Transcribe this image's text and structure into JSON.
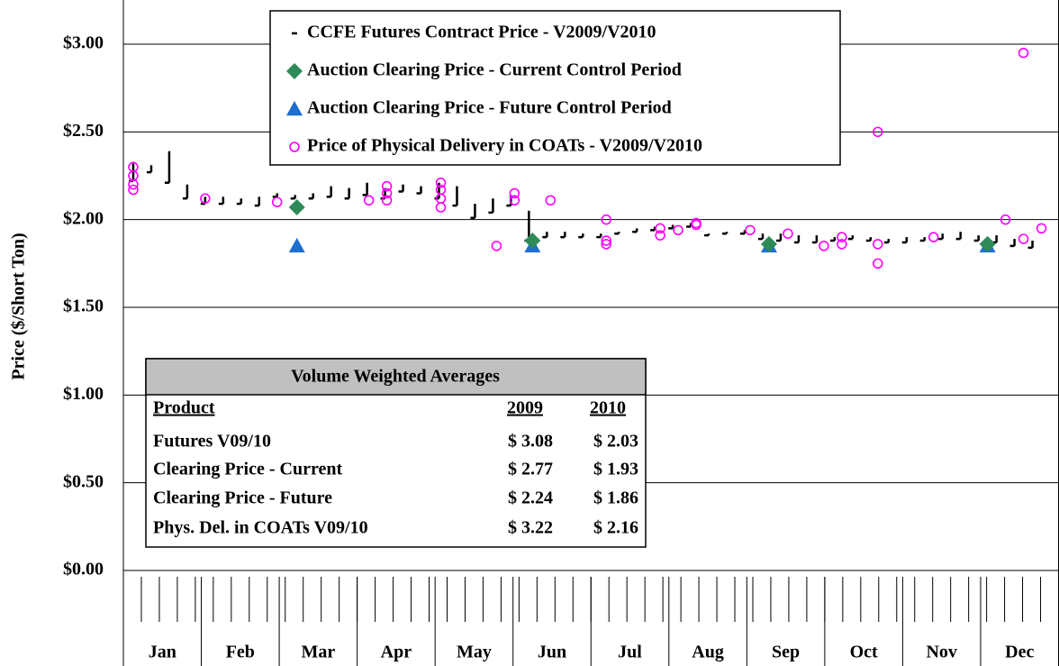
{
  "chart_data": {
    "type": "stock",
    "y_label": "Price ($/Short Ton)",
    "categories": [
      "Jan",
      "Feb",
      "Mar",
      "Apr",
      "May",
      "Jun",
      "Jul",
      "Aug",
      "Sep",
      "Oct",
      "Nov",
      "Dec"
    ],
    "xlim": [
      0,
      52
    ],
    "xticks": [
      0,
      1,
      2,
      3,
      4,
      5,
      6,
      7,
      8,
      9,
      10,
      11,
      12,
      13,
      14,
      15,
      16,
      17,
      18,
      19,
      20,
      21,
      22,
      23,
      24,
      25,
      26,
      27,
      28,
      29,
      30,
      31,
      32,
      33,
      34,
      35,
      36,
      37,
      38,
      39,
      40,
      41,
      42,
      43,
      44,
      45,
      46,
      47,
      48,
      49,
      50,
      51,
      52
    ],
    "ylim": [
      0,
      3
    ],
    "yticks": [
      {
        "value": 0,
        "label": "$0.00"
      },
      {
        "value": 0.5,
        "label": "$0.50"
      },
      {
        "value": 1,
        "label": "$1.00"
      },
      {
        "value": 1.5,
        "label": "$1.50"
      },
      {
        "value": 2,
        "label": "$2.00"
      },
      {
        "value": 2.5,
        "label": "$2.50"
      },
      {
        "value": 3,
        "label": "$3.00"
      }
    ],
    "grid": true,
    "series": [
      {
        "name": "CCFE Futures Contract Price - V2009/V2010",
        "marker": "range",
        "color": "#000000",
        "x": [
          0.55,
          1.55,
          2.55,
          3.55,
          4.55,
          5.55,
          6.55,
          7.55,
          8.55,
          9.55,
          10.55,
          11.55,
          12.55,
          13.55,
          14.55,
          15.55,
          16.55,
          17.55,
          18.55,
          19.55,
          20.55,
          21.55,
          22.55,
          23.55,
          24.55,
          25.55,
          26.55,
          27.55,
          28.55,
          29.55,
          30.55,
          31.55,
          32.55,
          33.55,
          34.55,
          35.55,
          36.55,
          37.55,
          38.55,
          39.55,
          40.55,
          41.55,
          42.55,
          43.55,
          44.55,
          45.55,
          46.55,
          47.55,
          48.55,
          49.55,
          50.55
        ],
        "high": [
          2.32,
          2.31,
          2.39,
          2.2,
          2.13,
          2.13,
          2.12,
          2.13,
          2.15,
          2.14,
          2.15,
          2.19,
          2.18,
          2.21,
          2.18,
          2.2,
          2.19,
          2.21,
          2.19,
          2.09,
          2.12,
          2.14,
          2.05,
          1.93,
          1.93,
          1.92,
          1.92,
          1.93,
          1.95,
          1.96,
          1.97,
          1.98,
          1.92,
          1.93,
          1.94,
          1.92,
          1.92,
          1.91,
          1.91,
          1.9,
          1.91,
          1.9,
          1.89,
          1.9,
          1.9,
          1.92,
          1.93,
          1.91,
          1.91,
          1.89,
          1.88
        ],
        "low": [
          2.22,
          2.27,
          2.21,
          2.12,
          2.09,
          2.09,
          2.09,
          2.08,
          2.13,
          2.12,
          2.12,
          2.13,
          2.12,
          2.14,
          2.12,
          2.16,
          2.15,
          2.12,
          2.08,
          2.01,
          2.04,
          2.08,
          1.88,
          1.9,
          1.9,
          1.9,
          1.9,
          1.92,
          1.93,
          1.94,
          1.95,
          1.96,
          1.91,
          1.92,
          1.92,
          1.89,
          1.88,
          1.87,
          1.87,
          1.88,
          1.89,
          1.88,
          1.87,
          1.87,
          1.88,
          1.89,
          1.89,
          1.88,
          1.87,
          1.85,
          1.84
        ]
      },
      {
        "name": "Auction Clearing Price - Current Control Period",
        "marker": "diamond",
        "color": "#2e8b57",
        "x": [
          9.65,
          22.75,
          35.9,
          48.05
        ],
        "values": [
          2.07,
          1.88,
          1.86,
          1.86
        ]
      },
      {
        "name": "Auction Clearing Price - Future Control Period",
        "marker": "triangle",
        "color": "#1f6fd0",
        "x": [
          9.65,
          22.75,
          35.9,
          48.05
        ],
        "values": [
          1.85,
          1.85,
          1.85,
          1.85
        ]
      },
      {
        "name": "Price of Physical Delivery in COATs - V2009/V2010",
        "marker": "circle",
        "color": "#ff00ff",
        "x": [
          0.55,
          0.55,
          0.55,
          0.55,
          4.55,
          8.55,
          13.65,
          14.65,
          14.65,
          14.65,
          17.65,
          17.65,
          17.65,
          17.65,
          20.75,
          21.75,
          21.75,
          23.75,
          26.85,
          26.85,
          26.85,
          29.85,
          29.85,
          30.85,
          31.85,
          31.85,
          34.85,
          36.95,
          38.95,
          39.95,
          39.95,
          41.95,
          41.95,
          41.95,
          45.05,
          49.05,
          50.05,
          50.05,
          51.05
        ],
        "values": [
          2.3,
          2.25,
          2.2,
          2.17,
          2.12,
          2.1,
          2.11,
          2.19,
          2.15,
          2.11,
          2.21,
          2.17,
          2.12,
          2.07,
          1.85,
          2.15,
          2.11,
          2.11,
          2.0,
          1.88,
          1.86,
          1.95,
          1.91,
          1.94,
          1.98,
          1.97,
          1.94,
          1.92,
          1.85,
          1.9,
          1.86,
          2.5,
          1.86,
          1.75,
          1.9,
          2.0,
          2.95,
          1.89,
          1.95
        ]
      }
    ]
  },
  "table": {
    "title": "Volume Weighted Averages",
    "header": [
      "Product",
      "2009",
      "2010"
    ],
    "rows": [
      [
        "Futures V09/10",
        "$ 3.08",
        "$ 2.03"
      ],
      [
        "Clearing Price - Current",
        "$ 2.77",
        "$ 1.93"
      ],
      [
        "Clearing Price - Future",
        "$ 2.24",
        "$ 1.86"
      ],
      [
        "Phys. Del. in COATs V09/10",
        "$ 3.22",
        "$ 2.16"
      ]
    ]
  }
}
